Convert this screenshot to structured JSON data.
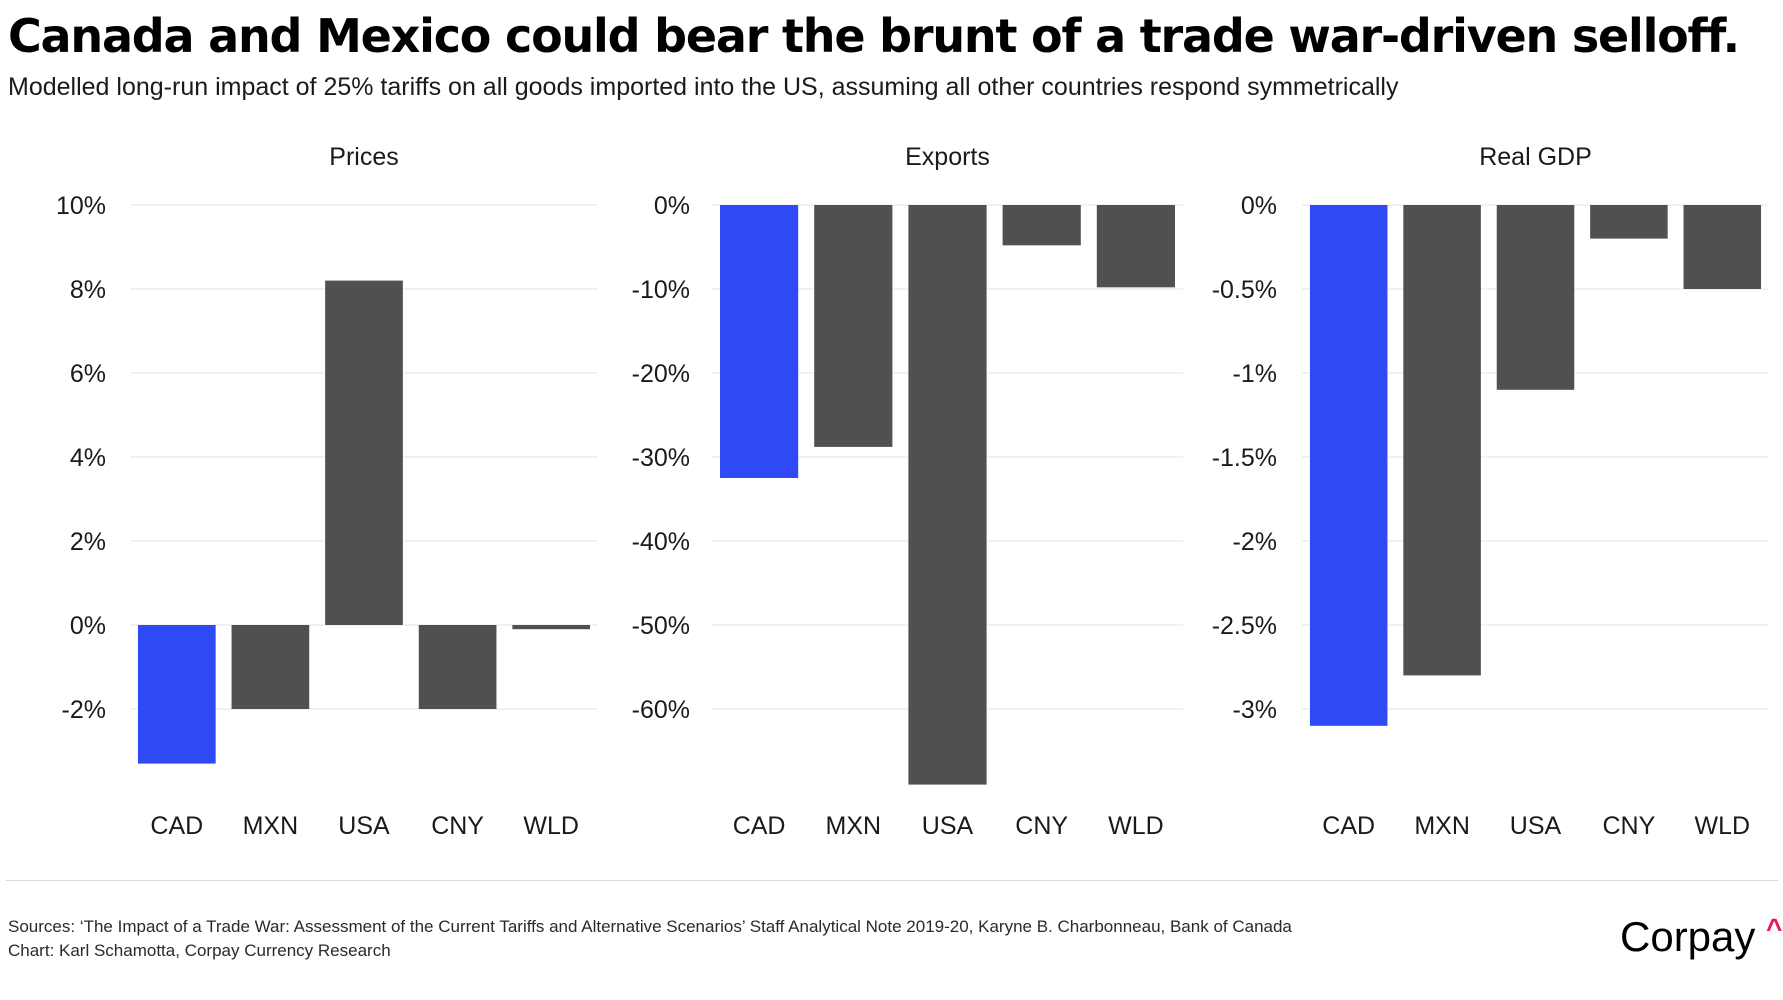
{
  "title": "Canada and Mexico could bear the brunt of a trade war-driven selloff.",
  "subtitle": "Modelled long-run impact of 25% tariffs on all goods imported into the US, assuming all other countries respond symmetrically",
  "colors": {
    "highlight": "#2f4af5",
    "bar": "#505050",
    "grid": "#ebebeb",
    "text": "#111111",
    "logo_accent": "#e6194b"
  },
  "chart_data": [
    {
      "type": "bar",
      "title": "Prices",
      "categories": [
        "CAD",
        "MXN",
        "USA",
        "CNY",
        "WLD"
      ],
      "values": [
        -3.3,
        -2.0,
        8.2,
        -2.0,
        -0.1
      ],
      "highlight_index": 0,
      "ticks": [
        10,
        8,
        6,
        4,
        2,
        0,
        -2
      ],
      "tick_labels": [
        "10%",
        "8%",
        "6%",
        "4%",
        "2%",
        "0%",
        "-2%"
      ],
      "ylim": [
        -3.5,
        10
      ],
      "xlabel": "",
      "ylabel": "",
      "grid": true
    },
    {
      "type": "bar",
      "title": "Exports",
      "categories": [
        "CAD",
        "MXN",
        "USA",
        "CNY",
        "WLD"
      ],
      "values": [
        -32.5,
        -28.8,
        -69.0,
        -4.8,
        -9.8
      ],
      "highlight_index": 0,
      "ticks": [
        0,
        -10,
        -20,
        -30,
        -40,
        -50,
        -60
      ],
      "tick_labels": [
        "0%",
        "-10%",
        "-20%",
        "-30%",
        "-40%",
        "-50%",
        "-60%"
      ],
      "ylim": [
        -70,
        0
      ],
      "xlabel": "",
      "ylabel": "",
      "grid": true
    },
    {
      "type": "bar",
      "title": "Real GDP",
      "categories": [
        "CAD",
        "MXN",
        "USA",
        "CNY",
        "WLD"
      ],
      "values": [
        -3.1,
        -2.8,
        -1.1,
        -0.2,
        -0.5
      ],
      "highlight_index": 0,
      "ticks": [
        0,
        -0.5,
        -1,
        -1.5,
        -2,
        -2.5,
        -3
      ],
      "tick_labels": [
        "0%",
        "-0.5%",
        "-1%",
        "-1.5%",
        "-2%",
        "-2.5%",
        "-3%"
      ],
      "ylim": [
        -3.5,
        0
      ],
      "xlabel": "",
      "ylabel": "",
      "grid": true
    }
  ],
  "footer": {
    "sources": "Sources: ‘The Impact of a Trade War: Assessment of the Current Tariffs and Alternative Scenarios’ Staff Analytical Note 2019-20, Karyne B. Charbonneau, Bank of Canada",
    "credit": "Chart: Karl Schamotta, Corpay Currency Research"
  },
  "logo": {
    "text": "Corpay",
    "caret": "^"
  }
}
